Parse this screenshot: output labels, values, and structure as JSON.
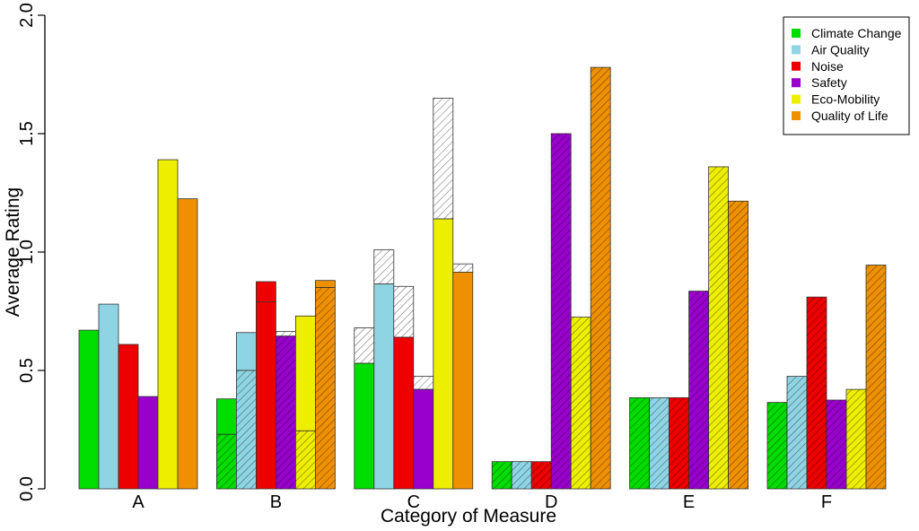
{
  "chart_data": {
    "type": "bar",
    "xlabel": "Category of Measure",
    "ylabel": "Average Rating",
    "ylim": [
      0,
      2.0
    ],
    "yticks": [
      "0.0",
      "0.5",
      "1.0",
      "1.5",
      "2.0"
    ],
    "yticks_values": [
      0,
      0.5,
      1.0,
      1.5,
      2.0
    ],
    "categories": [
      "A",
      "B",
      "C",
      "D",
      "E",
      "F"
    ],
    "legend_position": "top-right",
    "series": [
      {
        "name": "Climate Change",
        "color": "#00dd00",
        "values": [
          0.67,
          0.23,
          0.53,
          0.115,
          0.385,
          0.365
        ],
        "upper": [
          null,
          0.38,
          0.68,
          null,
          null,
          null
        ],
        "upper_style": [
          null,
          "solid",
          "hatched-gray",
          null,
          null,
          null
        ]
      },
      {
        "name": "Air Quality",
        "color": "#8fd4e3",
        "values": [
          0.78,
          0.5,
          0.865,
          0.115,
          0.385,
          0.475
        ],
        "upper": [
          null,
          0.66,
          1.01,
          null,
          null,
          null
        ],
        "upper_style": [
          null,
          "solid",
          "hatched-gray",
          null,
          null,
          null
        ]
      },
      {
        "name": "Noise",
        "color": "#ee0000",
        "values": [
          0.61,
          0.79,
          0.64,
          0.115,
          0.385,
          0.81
        ],
        "upper": [
          null,
          0.875,
          0.855,
          null,
          null,
          null
        ],
        "upper_style": [
          null,
          "solid",
          "hatched-gray",
          null,
          null,
          null
        ]
      },
      {
        "name": "Safety",
        "color": "#9900cc",
        "values": [
          0.39,
          0.645,
          0.42,
          1.5,
          0.835,
          0.375
        ],
        "upper": [
          null,
          0.665,
          0.475,
          null,
          null,
          null
        ],
        "upper_style": [
          null,
          "hatched-gray",
          "hatched-gray",
          null,
          null,
          null
        ]
      },
      {
        "name": "Eco-Mobility",
        "color": "#eeee00",
        "values": [
          1.39,
          0.245,
          1.14,
          0.725,
          1.36,
          0.42
        ],
        "upper": [
          null,
          0.73,
          1.65,
          null,
          null,
          null
        ],
        "upper_style": [
          null,
          "solid",
          "hatched-gray",
          null,
          null,
          null
        ]
      },
      {
        "name": "Quality of Life",
        "color": "#ee9000",
        "values": [
          1.225,
          0.85,
          0.915,
          1.78,
          1.215,
          0.945
        ],
        "upper": [
          null,
          0.88,
          0.95,
          null,
          null,
          null
        ],
        "upper_style": [
          null,
          "solid",
          "hatched-gray",
          null,
          null,
          null
        ]
      }
    ],
    "hatched": [
      [
        false,
        true,
        false,
        true,
        true,
        true
      ],
      [
        false,
        true,
        false,
        true,
        true,
        true
      ],
      [
        false,
        false,
        false,
        true,
        true,
        true
      ],
      [
        false,
        true,
        false,
        true,
        true,
        true
      ],
      [
        false,
        true,
        false,
        true,
        true,
        true
      ],
      [
        false,
        true,
        false,
        true,
        true,
        true
      ]
    ]
  }
}
